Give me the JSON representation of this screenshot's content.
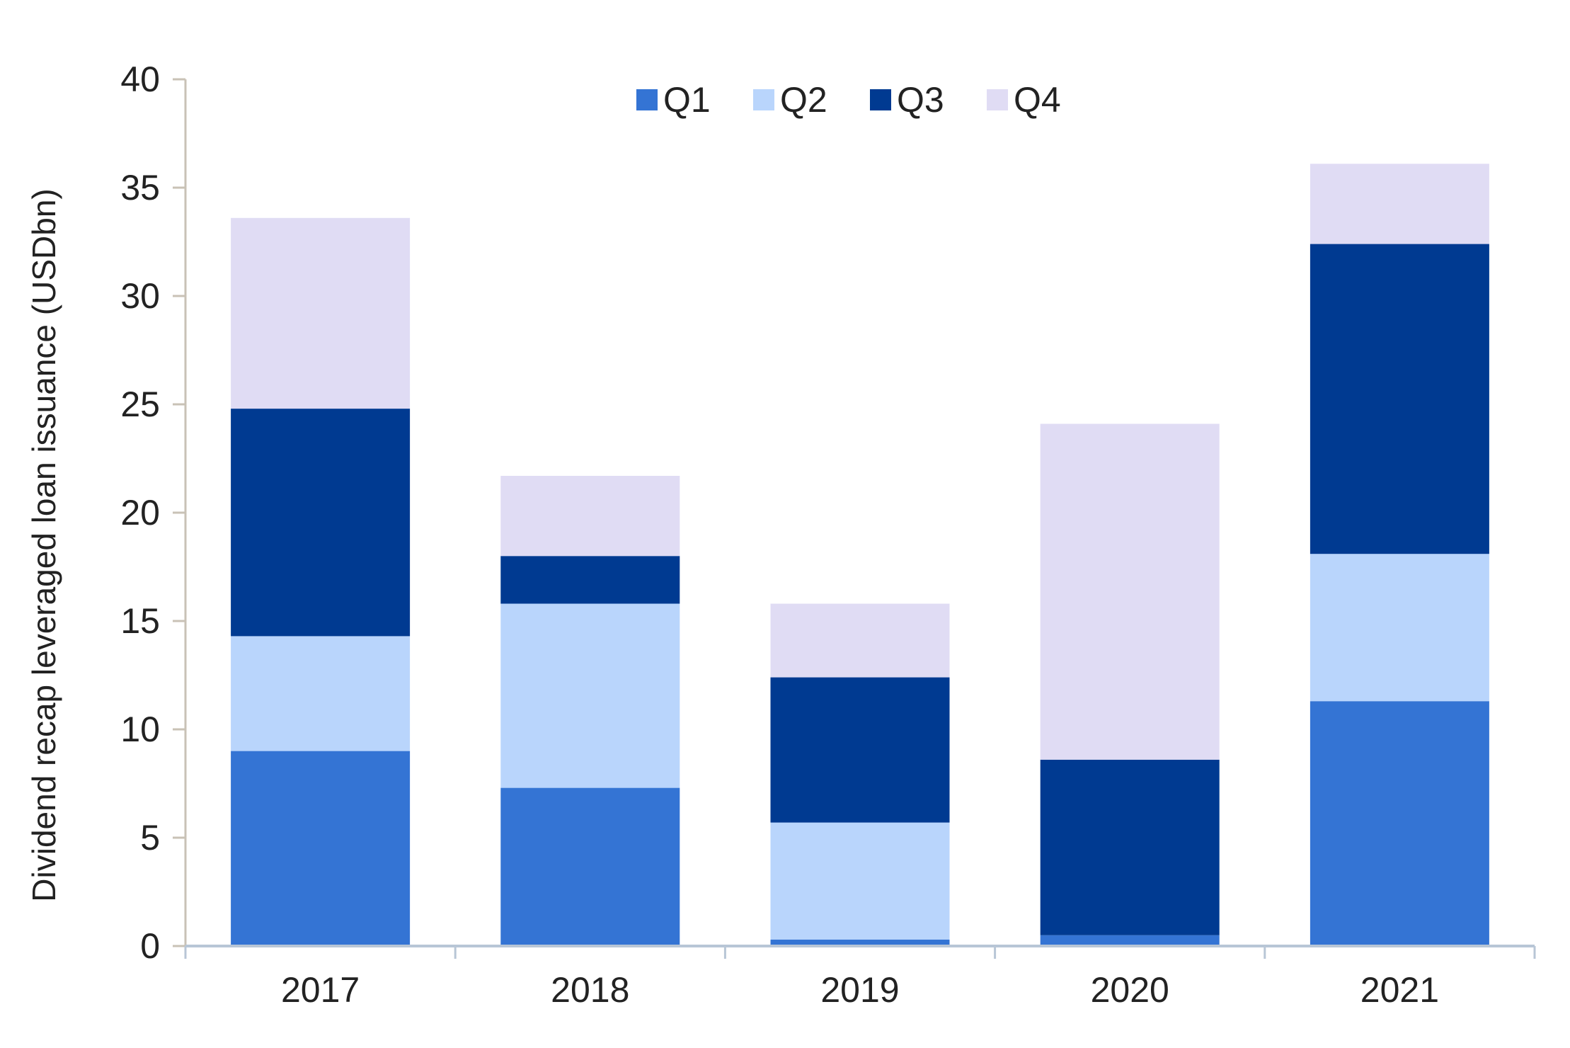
{
  "chart_data": {
    "type": "bar",
    "stacked": true,
    "title": "",
    "xlabel": "",
    "ylabel": "Dividend recap leveraged loan issuance (USDbn)",
    "ylim": [
      0,
      40
    ],
    "yticks": [
      0,
      5,
      10,
      15,
      20,
      25,
      30,
      35,
      40
    ],
    "grid": false,
    "legend_position": "top",
    "categories": [
      "2017",
      "2018",
      "2019",
      "2020",
      "2021"
    ],
    "series": [
      {
        "name": "Q1",
        "color": "#3474D4",
        "values": [
          9.0,
          7.3,
          0.3,
          0.5,
          11.3
        ]
      },
      {
        "name": "Q2",
        "color": "#B9D5FC",
        "values": [
          5.3,
          8.5,
          5.4,
          0.0,
          6.8
        ]
      },
      {
        "name": "Q3",
        "color": "#003A91",
        "values": [
          10.5,
          2.2,
          6.7,
          8.1,
          14.3
        ]
      },
      {
        "name": "Q4",
        "color": "#E0DCF4",
        "values": [
          8.8,
          3.7,
          3.4,
          15.5,
          3.7
        ]
      }
    ],
    "axis_color": "#C9C2B6",
    "x_axis_color": "#B8C6D6"
  }
}
